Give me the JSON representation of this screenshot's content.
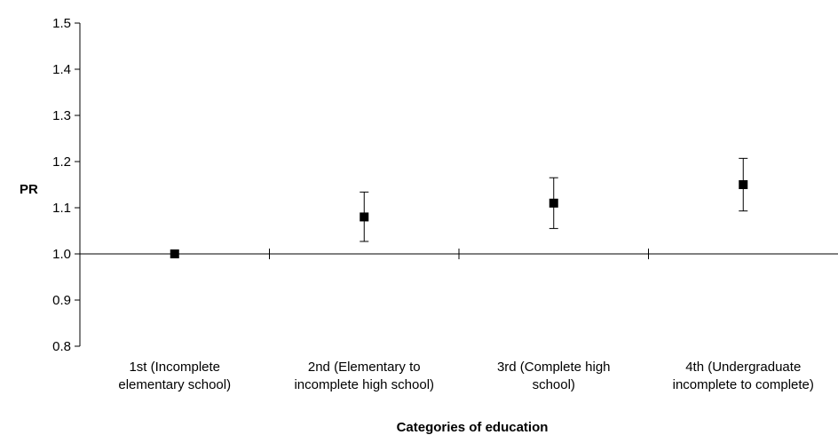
{
  "chart_data": {
    "type": "scatter",
    "title": "",
    "xlabel": "Categories of education",
    "ylabel": "PR",
    "ylim": [
      0.8,
      1.5
    ],
    "yticks": [
      "0.8",
      "0.9",
      "1.0",
      "1.1",
      "1.2",
      "1.3",
      "1.4",
      "1.5"
    ],
    "reference_line": 1.0,
    "grid": false,
    "legend": "none",
    "marker_color": "#000000",
    "categories": [
      [
        "1st (Incomplete",
        "elementary school)"
      ],
      [
        "2nd (Elementary to",
        "incomplete high school)"
      ],
      [
        "3rd (Complete high",
        "school)"
      ],
      [
        "4th (Undergraduate",
        "incomplete to complete)"
      ]
    ],
    "series": [
      {
        "values": [
          1.0,
          1.08,
          1.11,
          1.15
        ],
        "ci_lower": [
          1.0,
          1.027,
          1.055,
          1.093
        ],
        "ci_upper": [
          1.0,
          1.134,
          1.165,
          1.207
        ]
      }
    ]
  }
}
